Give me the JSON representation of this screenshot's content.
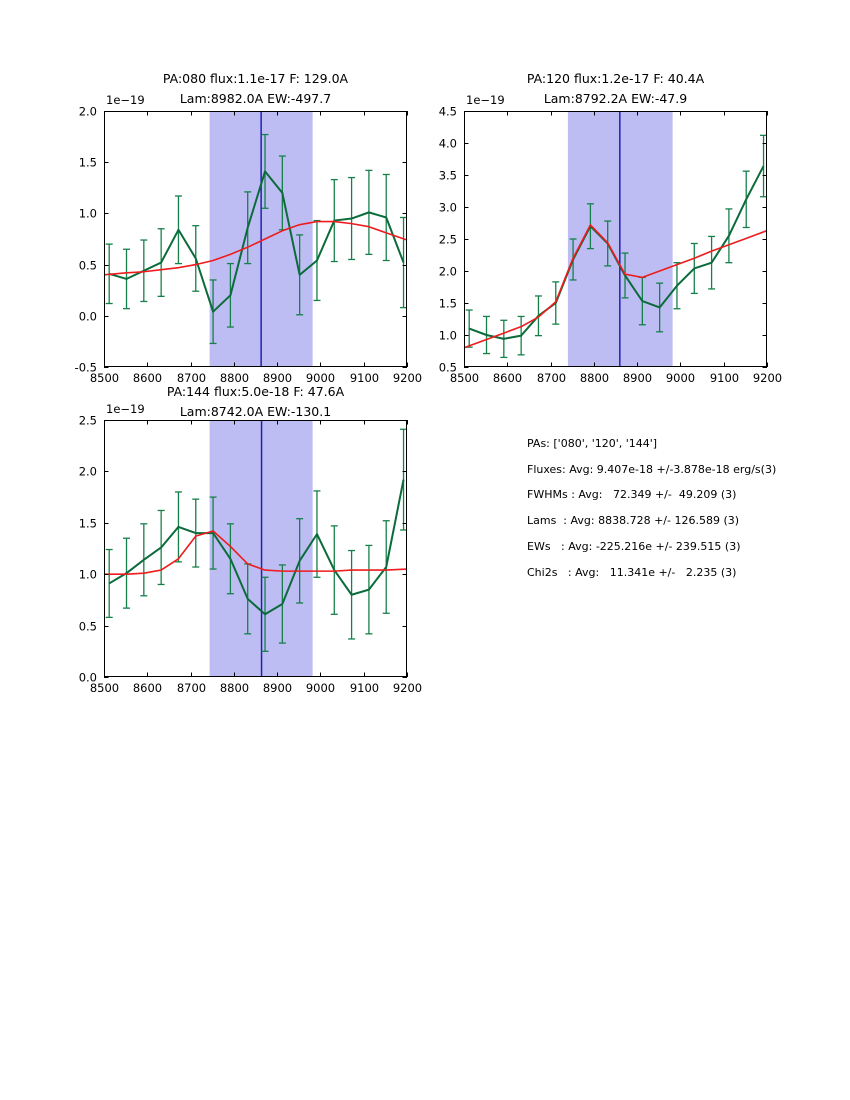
{
  "colors": {
    "data_line": "#0b6b3a",
    "error_bar": "#15804a",
    "fit_line": "#ee1c1c",
    "band_fill": "#bdbdf4",
    "band_line": "#2222ae",
    "axis": "#000000"
  },
  "chart_data": [
    {
      "name": "PA080",
      "type": "line",
      "title_line1": "PA:080 flux:1.1e-17 F: 129.0A",
      "title_line2": "Lam:8982.0A EW:-497.7",
      "offset_label": "1e−19",
      "xlim": [
        8500,
        9200
      ],
      "ylim": [
        -0.5,
        2.0
      ],
      "xtick_labels": [
        "8500",
        "8600",
        "8700",
        "8800",
        "8900",
        "9000",
        "9100",
        "9200"
      ],
      "ytick_labels": [
        "-0.5",
        "0.0",
        "0.5",
        "1.0",
        "1.5",
        "2.0"
      ],
      "band": {
        "x0": 8744,
        "x1": 8982,
        "line_x": 8863
      },
      "x": [
        8512,
        8552,
        8592,
        8632,
        8672,
        8712,
        8752,
        8792,
        8832,
        8872,
        8912,
        8952,
        8992,
        9032,
        9072,
        9112,
        9152,
        9192
      ],
      "y": [
        0.41,
        0.36,
        0.44,
        0.52,
        0.84,
        0.56,
        0.04,
        0.2,
        0.86,
        1.41,
        1.2,
        0.4,
        0.54,
        0.93,
        0.95,
        1.01,
        0.96,
        0.52
      ],
      "yerr": [
        0.29,
        0.29,
        0.3,
        0.33,
        0.33,
        0.32,
        0.31,
        0.31,
        0.35,
        0.36,
        0.36,
        0.39,
        0.39,
        0.4,
        0.4,
        0.41,
        0.42,
        0.44
      ],
      "fit_x": [
        8500,
        8552,
        8592,
        8632,
        8672,
        8712,
        8752,
        8792,
        8832,
        8872,
        8912,
        8952,
        8992,
        9032,
        9072,
        9112,
        9152,
        9200
      ],
      "fit_y": [
        0.4,
        0.42,
        0.43,
        0.45,
        0.47,
        0.5,
        0.54,
        0.6,
        0.67,
        0.75,
        0.83,
        0.89,
        0.92,
        0.92,
        0.9,
        0.87,
        0.81,
        0.74
      ]
    },
    {
      "name": "PA120",
      "type": "line",
      "title_line1": "PA:120 flux:1.2e-17 F: 40.4A",
      "title_line2": "Lam:8792.2A EW:-47.9",
      "offset_label": "1e−19",
      "xlim": [
        8500,
        9200
      ],
      "ylim": [
        0.5,
        4.5
      ],
      "xtick_labels": [
        "8500",
        "8600",
        "8700",
        "8800",
        "8900",
        "9000",
        "9100",
        "9200"
      ],
      "ytick_labels": [
        "0.5",
        "1.0",
        "1.5",
        "2.0",
        "2.5",
        "3.0",
        "3.5",
        "4.0",
        "4.5"
      ],
      "band": {
        "x0": 8740,
        "x1": 8982,
        "line_x": 8860
      },
      "x": [
        8512,
        8552,
        8592,
        8632,
        8672,
        8712,
        8752,
        8792,
        8832,
        8872,
        8912,
        8952,
        8992,
        9032,
        9072,
        9112,
        9152,
        9192
      ],
      "y": [
        1.1,
        1.0,
        0.94,
        0.99,
        1.3,
        1.5,
        2.18,
        2.7,
        2.43,
        1.93,
        1.53,
        1.43,
        1.77,
        2.04,
        2.13,
        2.55,
        3.12,
        3.64
      ],
      "yerr": [
        0.29,
        0.29,
        0.29,
        0.3,
        0.31,
        0.33,
        0.32,
        0.35,
        0.35,
        0.35,
        0.37,
        0.38,
        0.36,
        0.39,
        0.41,
        0.42,
        0.44,
        0.48
      ],
      "fit_x": [
        8500,
        8552,
        8592,
        8632,
        8672,
        8712,
        8752,
        8792,
        8832,
        8872,
        8912,
        8952,
        8992,
        9032,
        9072,
        9112,
        9152,
        9200
      ],
      "fit_y": [
        0.8,
        0.93,
        1.03,
        1.13,
        1.28,
        1.52,
        2.2,
        2.72,
        2.44,
        1.95,
        1.9,
        2.0,
        2.1,
        2.2,
        2.31,
        2.41,
        2.51,
        2.63
      ]
    },
    {
      "name": "PA144",
      "type": "line",
      "title_line1": "PA:144 flux:5.0e-18 F: 47.6A",
      "title_line2": "Lam:8742.0A EW:-130.1",
      "offset_label": "1e−19",
      "xlim": [
        8500,
        9200
      ],
      "ylim": [
        0.0,
        2.5
      ],
      "xtick_labels": [
        "8500",
        "8600",
        "8700",
        "8800",
        "8900",
        "9000",
        "9100",
        "9200"
      ],
      "ytick_labels": [
        "0.0",
        "0.5",
        "1.0",
        "1.5",
        "2.0",
        "2.5"
      ],
      "band": {
        "x0": 8744,
        "x1": 8982,
        "line_x": 8864
      },
      "x": [
        8512,
        8552,
        8592,
        8632,
        8672,
        8712,
        8752,
        8792,
        8832,
        8872,
        8912,
        8952,
        8992,
        9032,
        9072,
        9112,
        9152,
        9192
      ],
      "y": [
        0.91,
        1.01,
        1.14,
        1.26,
        1.46,
        1.4,
        1.4,
        1.15,
        0.76,
        0.61,
        0.71,
        1.13,
        1.39,
        1.04,
        0.8,
        0.85,
        1.07,
        1.92
      ],
      "yerr": [
        0.33,
        0.34,
        0.35,
        0.36,
        0.34,
        0.33,
        0.35,
        0.34,
        0.34,
        0.36,
        0.38,
        0.41,
        0.42,
        0.43,
        0.43,
        0.43,
        0.45,
        0.49
      ],
      "fit_x": [
        8500,
        8552,
        8592,
        8632,
        8672,
        8712,
        8752,
        8792,
        8832,
        8872,
        8912,
        8952,
        8992,
        9032,
        9072,
        9112,
        9152,
        9200
      ],
      "fit_y": [
        1.0,
        1.0,
        1.01,
        1.04,
        1.15,
        1.37,
        1.42,
        1.27,
        1.1,
        1.04,
        1.03,
        1.03,
        1.03,
        1.03,
        1.04,
        1.04,
        1.04,
        1.05
      ]
    }
  ],
  "panel": {
    "lines": [
      "PAs: ['080', '120', '144']",
      "Fluxes: Avg: 9.407e-18 +/-3.878e-18 erg/s(3)",
      "FWHMs : Avg:   72.349 +/-  49.209 (3)",
      "Lams  : Avg: 8838.728 +/- 126.589 (3)",
      "EWs   : Avg: -225.216e +/- 239.515 (3)",
      "Chi2s   : Avg:   11.341e +/-   2.235 (3)"
    ]
  }
}
